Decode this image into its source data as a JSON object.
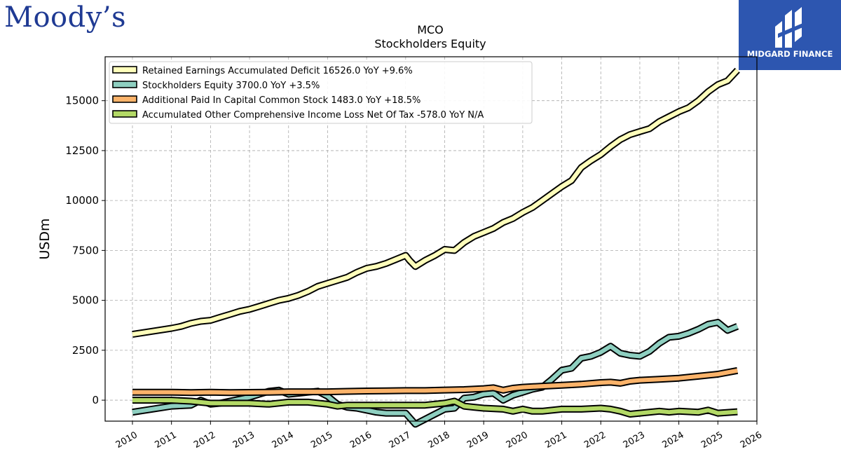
{
  "logos": {
    "left_text": "Moody’s",
    "right_text": "MIDGARD FINANCE"
  },
  "colors": {
    "retained": "#ffffbb",
    "equity": "#8ecfc0",
    "apic": "#fbb36a",
    "aoci": "#b3d966",
    "outline": "#000000",
    "grid": "#aaaaaa",
    "midgard_bg": "#2d56b0"
  },
  "chart_data": {
    "type": "line",
    "title": "MCO",
    "subtitle": "Stockholders  Equity",
    "ylabel": "USDm",
    "xlabel": "",
    "xlim": [
      2009.3,
      2026.0
    ],
    "ylim": [
      -1050,
      17200
    ],
    "yticks": [
      0,
      2500,
      5000,
      7500,
      10000,
      12500,
      15000
    ],
    "xticks": [
      2010,
      2011,
      2012,
      2013,
      2014,
      2015,
      2016,
      2017,
      2018,
      2019,
      2020,
      2021,
      2022,
      2023,
      2024,
      2025,
      2026
    ],
    "grid": true,
    "legend_position": "top-left",
    "series": [
      {
        "name": "Retained Earnings Accumulated Deficit  16526.0 YoY +9.6%",
        "color_key": "retained",
        "points": [
          [
            2010.0,
            3300
          ],
          [
            2010.5,
            3450
          ],
          [
            2011.0,
            3600
          ],
          [
            2011.25,
            3700
          ],
          [
            2011.5,
            3850
          ],
          [
            2011.75,
            3950
          ],
          [
            2012.0,
            4000
          ],
          [
            2012.25,
            4150
          ],
          [
            2012.5,
            4300
          ],
          [
            2012.75,
            4450
          ],
          [
            2013.0,
            4550
          ],
          [
            2013.25,
            4700
          ],
          [
            2013.5,
            4850
          ],
          [
            2013.75,
            5000
          ],
          [
            2014.0,
            5100
          ],
          [
            2014.25,
            5250
          ],
          [
            2014.5,
            5450
          ],
          [
            2014.75,
            5700
          ],
          [
            2015.0,
            5850
          ],
          [
            2015.25,
            6000
          ],
          [
            2015.5,
            6150
          ],
          [
            2015.75,
            6400
          ],
          [
            2016.0,
            6600
          ],
          [
            2016.25,
            6700
          ],
          [
            2016.5,
            6850
          ],
          [
            2016.75,
            7050
          ],
          [
            2017.0,
            7250
          ],
          [
            2017.1,
            7000
          ],
          [
            2017.25,
            6700
          ],
          [
            2017.5,
            7000
          ],
          [
            2017.75,
            7250
          ],
          [
            2018.0,
            7550
          ],
          [
            2018.25,
            7500
          ],
          [
            2018.5,
            7900
          ],
          [
            2018.75,
            8200
          ],
          [
            2019.0,
            8400
          ],
          [
            2019.25,
            8600
          ],
          [
            2019.5,
            8900
          ],
          [
            2019.75,
            9100
          ],
          [
            2020.0,
            9400
          ],
          [
            2020.25,
            9650
          ],
          [
            2020.5,
            10000
          ],
          [
            2020.75,
            10350
          ],
          [
            2021.0,
            10700
          ],
          [
            2021.25,
            11000
          ],
          [
            2021.5,
            11650
          ],
          [
            2021.75,
            12000
          ],
          [
            2022.0,
            12300
          ],
          [
            2022.25,
            12700
          ],
          [
            2022.5,
            13050
          ],
          [
            2022.75,
            13300
          ],
          [
            2023.0,
            13450
          ],
          [
            2023.25,
            13600
          ],
          [
            2023.5,
            13950
          ],
          [
            2023.75,
            14200
          ],
          [
            2024.0,
            14450
          ],
          [
            2024.25,
            14650
          ],
          [
            2024.5,
            15000
          ],
          [
            2024.75,
            15450
          ],
          [
            2025.0,
            15800
          ],
          [
            2025.25,
            16000
          ],
          [
            2025.5,
            16526
          ]
        ]
      },
      {
        "name": "Stockholders Equity  3700.0 YoY +3.5%",
        "color_key": "equity",
        "points": [
          [
            2010.0,
            -600
          ],
          [
            2010.5,
            -450
          ],
          [
            2011.0,
            -300
          ],
          [
            2011.5,
            -250
          ],
          [
            2011.75,
            0
          ],
          [
            2012.0,
            -200
          ],
          [
            2012.25,
            -150
          ],
          [
            2012.5,
            -50
          ],
          [
            2012.75,
            50
          ],
          [
            2013.0,
            150
          ],
          [
            2013.25,
            300
          ],
          [
            2013.5,
            450
          ],
          [
            2013.75,
            500
          ],
          [
            2014.0,
            300
          ],
          [
            2014.25,
            350
          ],
          [
            2014.5,
            400
          ],
          [
            2014.75,
            450
          ],
          [
            2015.0,
            200
          ],
          [
            2015.25,
            -200
          ],
          [
            2015.5,
            -350
          ],
          [
            2015.75,
            -400
          ],
          [
            2016.0,
            -500
          ],
          [
            2016.25,
            -600
          ],
          [
            2016.5,
            -650
          ],
          [
            2016.75,
            -650
          ],
          [
            2017.0,
            -650
          ],
          [
            2017.25,
            -1200
          ],
          [
            2017.5,
            -950
          ],
          [
            2017.75,
            -700
          ],
          [
            2018.0,
            -450
          ],
          [
            2018.25,
            -400
          ],
          [
            2018.5,
            100
          ],
          [
            2018.75,
            150
          ],
          [
            2019.0,
            300
          ],
          [
            2019.25,
            350
          ],
          [
            2019.5,
            0
          ],
          [
            2019.75,
            250
          ],
          [
            2020.0,
            400
          ],
          [
            2020.25,
            550
          ],
          [
            2020.5,
            650
          ],
          [
            2020.75,
            1050
          ],
          [
            2021.0,
            1500
          ],
          [
            2021.25,
            1600
          ],
          [
            2021.5,
            2100
          ],
          [
            2021.75,
            2200
          ],
          [
            2022.0,
            2400
          ],
          [
            2022.25,
            2700
          ],
          [
            2022.5,
            2350
          ],
          [
            2022.75,
            2250
          ],
          [
            2023.0,
            2200
          ],
          [
            2023.25,
            2450
          ],
          [
            2023.5,
            2850
          ],
          [
            2023.75,
            3150
          ],
          [
            2024.0,
            3200
          ],
          [
            2024.25,
            3350
          ],
          [
            2024.5,
            3550
          ],
          [
            2024.75,
            3800
          ],
          [
            2025.0,
            3900
          ],
          [
            2025.25,
            3500
          ],
          [
            2025.5,
            3700
          ]
        ]
      },
      {
        "name": "Additional Paid In Capital Common Stock  1483.0 YoY +18.5%",
        "color_key": "apic",
        "points": [
          [
            2010.0,
            400
          ],
          [
            2011.0,
            400
          ],
          [
            2011.5,
            380
          ],
          [
            2012.0,
            400
          ],
          [
            2012.5,
            380
          ],
          [
            2013.0,
            390
          ],
          [
            2013.5,
            400
          ],
          [
            2014.0,
            420
          ],
          [
            2014.5,
            420
          ],
          [
            2015.0,
            420
          ],
          [
            2015.5,
            440
          ],
          [
            2016.0,
            460
          ],
          [
            2016.5,
            470
          ],
          [
            2017.0,
            480
          ],
          [
            2017.5,
            480
          ],
          [
            2018.0,
            510
          ],
          [
            2018.5,
            530
          ],
          [
            2019.0,
            580
          ],
          [
            2019.25,
            620
          ],
          [
            2019.5,
            500
          ],
          [
            2019.75,
            600
          ],
          [
            2020.0,
            650
          ],
          [
            2020.5,
            700
          ],
          [
            2021.0,
            750
          ],
          [
            2021.5,
            800
          ],
          [
            2022.0,
            880
          ],
          [
            2022.25,
            900
          ],
          [
            2022.5,
            850
          ],
          [
            2022.75,
            950
          ],
          [
            2023.0,
            1000
          ],
          [
            2023.5,
            1050
          ],
          [
            2024.0,
            1100
          ],
          [
            2024.5,
            1200
          ],
          [
            2025.0,
            1300
          ],
          [
            2025.5,
            1483
          ]
        ]
      },
      {
        "name": "Accumulated Other Comprehensive Income Loss Net Of Tax  -578.0 YoY N/A",
        "color_key": "aoci",
        "points": [
          [
            2010.0,
            0
          ],
          [
            2011.0,
            0
          ],
          [
            2011.5,
            -50
          ],
          [
            2012.0,
            -150
          ],
          [
            2012.5,
            -150
          ],
          [
            2013.0,
            -150
          ],
          [
            2013.5,
            -200
          ],
          [
            2014.0,
            -100
          ],
          [
            2014.5,
            -100
          ],
          [
            2015.0,
            -200
          ],
          [
            2015.25,
            -300
          ],
          [
            2015.5,
            -250
          ],
          [
            2016.0,
            -250
          ],
          [
            2016.5,
            -250
          ],
          [
            2017.0,
            -250
          ],
          [
            2017.5,
            -250
          ],
          [
            2018.0,
            -150
          ],
          [
            2018.25,
            -50
          ],
          [
            2018.5,
            -300
          ],
          [
            2018.75,
            -350
          ],
          [
            2019.0,
            -400
          ],
          [
            2019.5,
            -450
          ],
          [
            2019.75,
            -550
          ],
          [
            2020.0,
            -450
          ],
          [
            2020.25,
            -550
          ],
          [
            2020.5,
            -550
          ],
          [
            2021.0,
            -450
          ],
          [
            2021.5,
            -450
          ],
          [
            2022.0,
            -400
          ],
          [
            2022.25,
            -450
          ],
          [
            2022.5,
            -550
          ],
          [
            2022.75,
            -700
          ],
          [
            2023.0,
            -650
          ],
          [
            2023.5,
            -550
          ],
          [
            2023.75,
            -600
          ],
          [
            2024.0,
            -550
          ],
          [
            2024.5,
            -600
          ],
          [
            2024.75,
            -500
          ],
          [
            2025.0,
            -650
          ],
          [
            2025.5,
            -578
          ]
        ]
      }
    ]
  }
}
